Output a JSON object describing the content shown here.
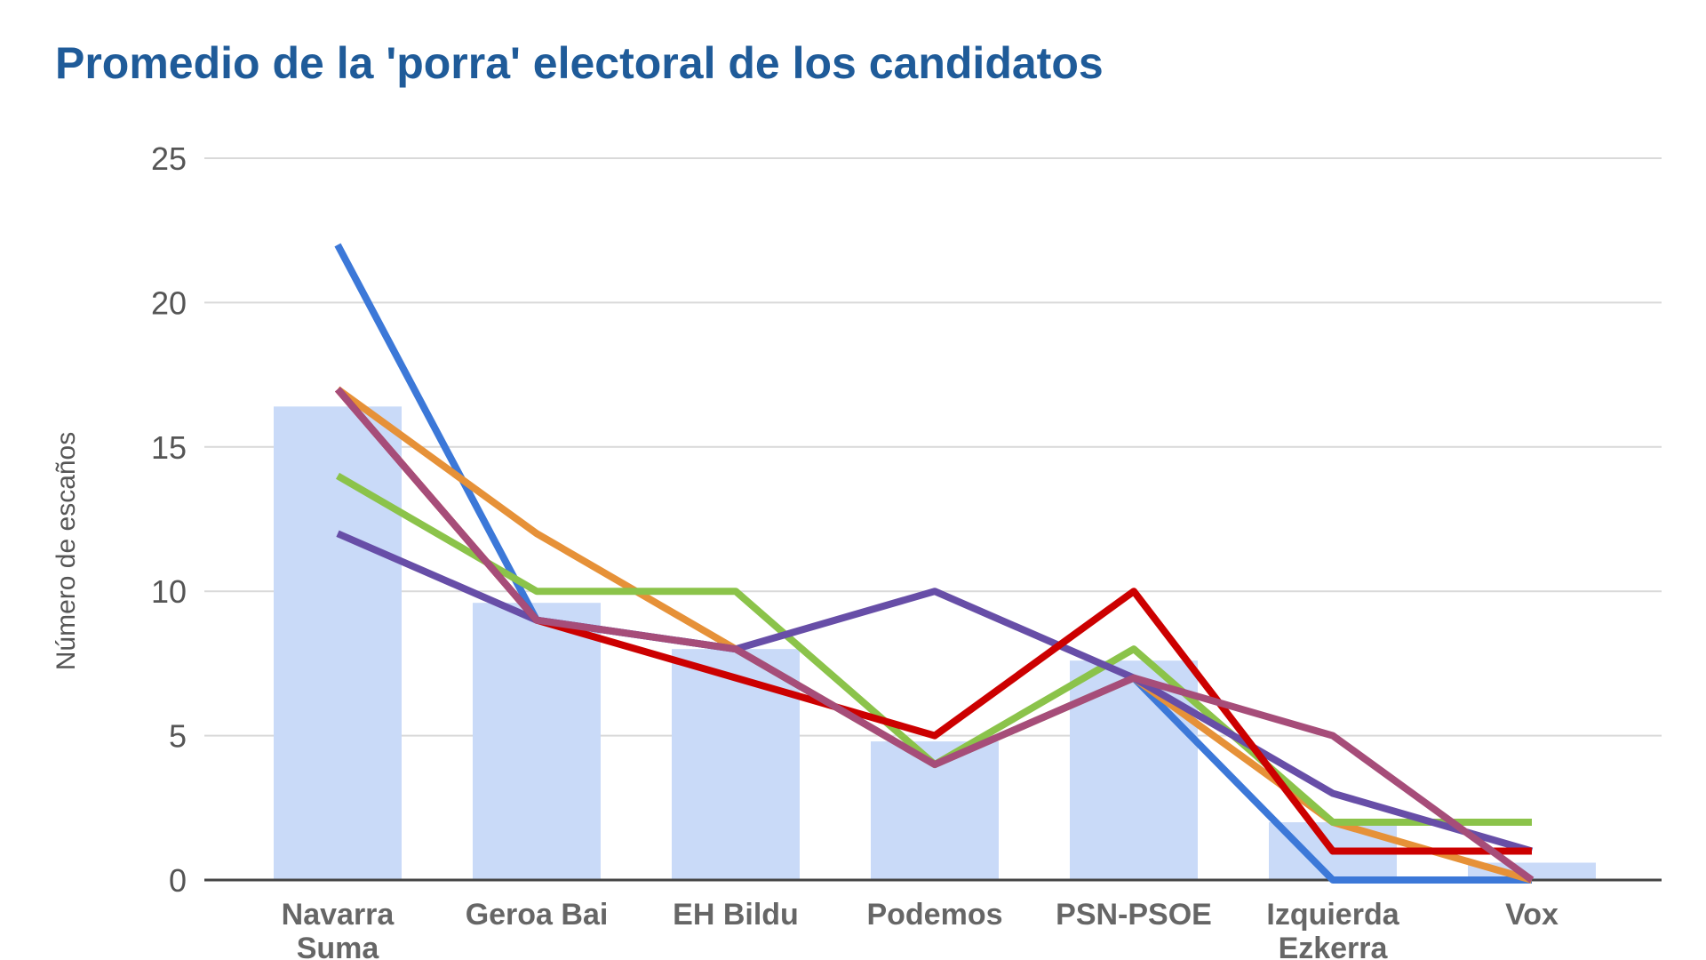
{
  "chart_data": {
    "type": "bar",
    "title": "Promedio de la 'porra' electoral de los candidatos",
    "xlabel": "",
    "ylabel": "Número de escaños",
    "ylim": [
      0,
      25
    ],
    "yticks": [
      0,
      5,
      10,
      15,
      20,
      25
    ],
    "grid": true,
    "legend": "none",
    "categories": [
      [
        "Navarra",
        "Suma"
      ],
      [
        "Geroa Bai"
      ],
      [
        "EH Bildu"
      ],
      [
        "Podemos"
      ],
      [
        "PSN-PSOE"
      ],
      [
        "Izquierda",
        "Ezkerra"
      ],
      [
        "Vox"
      ]
    ],
    "bars": {
      "color": "#c9daf8",
      "values": [
        16.4,
        9.6,
        8.0,
        4.8,
        7.6,
        2.0,
        0.6
      ]
    },
    "series": [
      {
        "color": "#3c78d8",
        "values": [
          22,
          9,
          8,
          4,
          7,
          0,
          0
        ]
      },
      {
        "color": "#e69138",
        "values": [
          17,
          12,
          8,
          4,
          7,
          2,
          0
        ]
      },
      {
        "color": "#8bc34a",
        "values": [
          14,
          10,
          10,
          4,
          8,
          2,
          2
        ]
      },
      {
        "color": "#674ea7",
        "values": [
          12,
          9,
          8,
          10,
          7,
          3,
          1
        ]
      },
      {
        "color": "#cc0000",
        "values": [
          17,
          9,
          7,
          5,
          10,
          1,
          1
        ]
      },
      {
        "color": "#a64d79",
        "values": [
          17,
          9,
          8,
          4,
          7,
          5,
          0
        ]
      }
    ]
  }
}
